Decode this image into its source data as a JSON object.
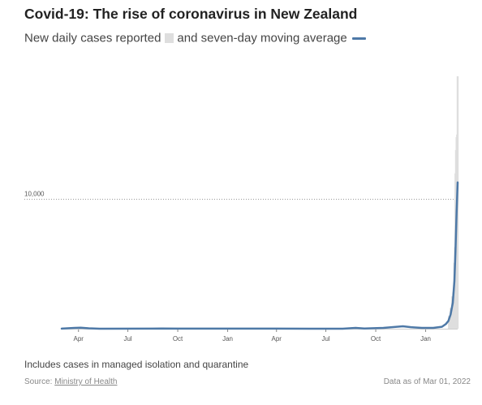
{
  "header": {
    "title": "Covid-19: The rise of coronavirus in New Zealand",
    "subtitle_part1": "New daily cases reported",
    "subtitle_part2": "and seven-day moving average"
  },
  "footer": {
    "note": "Includes cases in managed isolation and quarantine",
    "source_prefix": "Source: ",
    "source_name": "Ministry of Health",
    "as_of": "Data as of Mar 01, 2022"
  },
  "colors": {
    "average_line": "#4e79a7",
    "daily_bars": "#dedede",
    "gridline": "#999999"
  },
  "chart_data": {
    "type": "area",
    "title": "Covid-19: The rise of coronavirus in New Zealand",
    "subtitle": "New daily cases reported and seven-day moving average",
    "xlabel": "",
    "ylabel": "",
    "x_range": [
      "2020-03-01",
      "2022-03-01"
    ],
    "ylim": [
      0,
      20000
    ],
    "y_ticks": [
      {
        "value": 10000,
        "label": "10,000"
      }
    ],
    "x_ticks": [
      {
        "date": "2020-04-01",
        "label": "Apr"
      },
      {
        "date": "2020-07-01",
        "label": "Jul"
      },
      {
        "date": "2020-10-01",
        "label": "Oct"
      },
      {
        "date": "2021-01-01",
        "label": "Jan"
      },
      {
        "date": "2021-04-01",
        "label": "Apr"
      },
      {
        "date": "2021-07-01",
        "label": "Jul"
      },
      {
        "date": "2021-10-01",
        "label": "Oct"
      },
      {
        "date": "2022-01-01",
        "label": "Jan"
      }
    ],
    "grid": "horizontal dotted at tick",
    "legend": "inline in subtitle",
    "series": [
      {
        "name": "New daily cases reported",
        "kind": "bars",
        "points": [
          {
            "date": "2022-02-13",
            "value": 980
          },
          {
            "date": "2022-02-16",
            "value": 1600
          },
          {
            "date": "2022-02-19",
            "value": 2500
          },
          {
            "date": "2022-02-21",
            "value": 2800
          },
          {
            "date": "2022-02-23",
            "value": 5100
          },
          {
            "date": "2022-02-24",
            "value": 6300
          },
          {
            "date": "2022-02-25",
            "value": 12000
          },
          {
            "date": "2022-02-26",
            "value": 13800
          },
          {
            "date": "2022-02-27",
            "value": 14800
          },
          {
            "date": "2022-02-28",
            "value": 15000
          },
          {
            "date": "2022-03-01",
            "value": 19500
          }
        ]
      },
      {
        "name": "seven-day moving average",
        "kind": "line",
        "points": [
          {
            "date": "2020-03-01",
            "value": 5
          },
          {
            "date": "2020-03-25",
            "value": 60
          },
          {
            "date": "2020-04-05",
            "value": 80
          },
          {
            "date": "2020-04-20",
            "value": 30
          },
          {
            "date": "2020-05-10",
            "value": 2
          },
          {
            "date": "2020-08-15",
            "value": 5
          },
          {
            "date": "2020-09-01",
            "value": 20
          },
          {
            "date": "2020-10-01",
            "value": 5
          },
          {
            "date": "2021-01-01",
            "value": 4
          },
          {
            "date": "2021-04-01",
            "value": 6
          },
          {
            "date": "2021-08-01",
            "value": 3
          },
          {
            "date": "2021-08-25",
            "value": 60
          },
          {
            "date": "2021-09-10",
            "value": 20
          },
          {
            "date": "2021-10-15",
            "value": 60
          },
          {
            "date": "2021-11-20",
            "value": 190
          },
          {
            "date": "2021-12-05",
            "value": 120
          },
          {
            "date": "2021-12-25",
            "value": 60
          },
          {
            "date": "2022-01-15",
            "value": 60
          },
          {
            "date": "2022-01-31",
            "value": 150
          },
          {
            "date": "2022-02-07",
            "value": 350
          },
          {
            "date": "2022-02-12",
            "value": 600
          },
          {
            "date": "2022-02-16",
            "value": 1100
          },
          {
            "date": "2022-02-20",
            "value": 2000
          },
          {
            "date": "2022-02-23",
            "value": 3700
          },
          {
            "date": "2022-02-25",
            "value": 6000
          },
          {
            "date": "2022-02-27",
            "value": 9000
          },
          {
            "date": "2022-03-01",
            "value": 11300
          }
        ]
      }
    ]
  }
}
